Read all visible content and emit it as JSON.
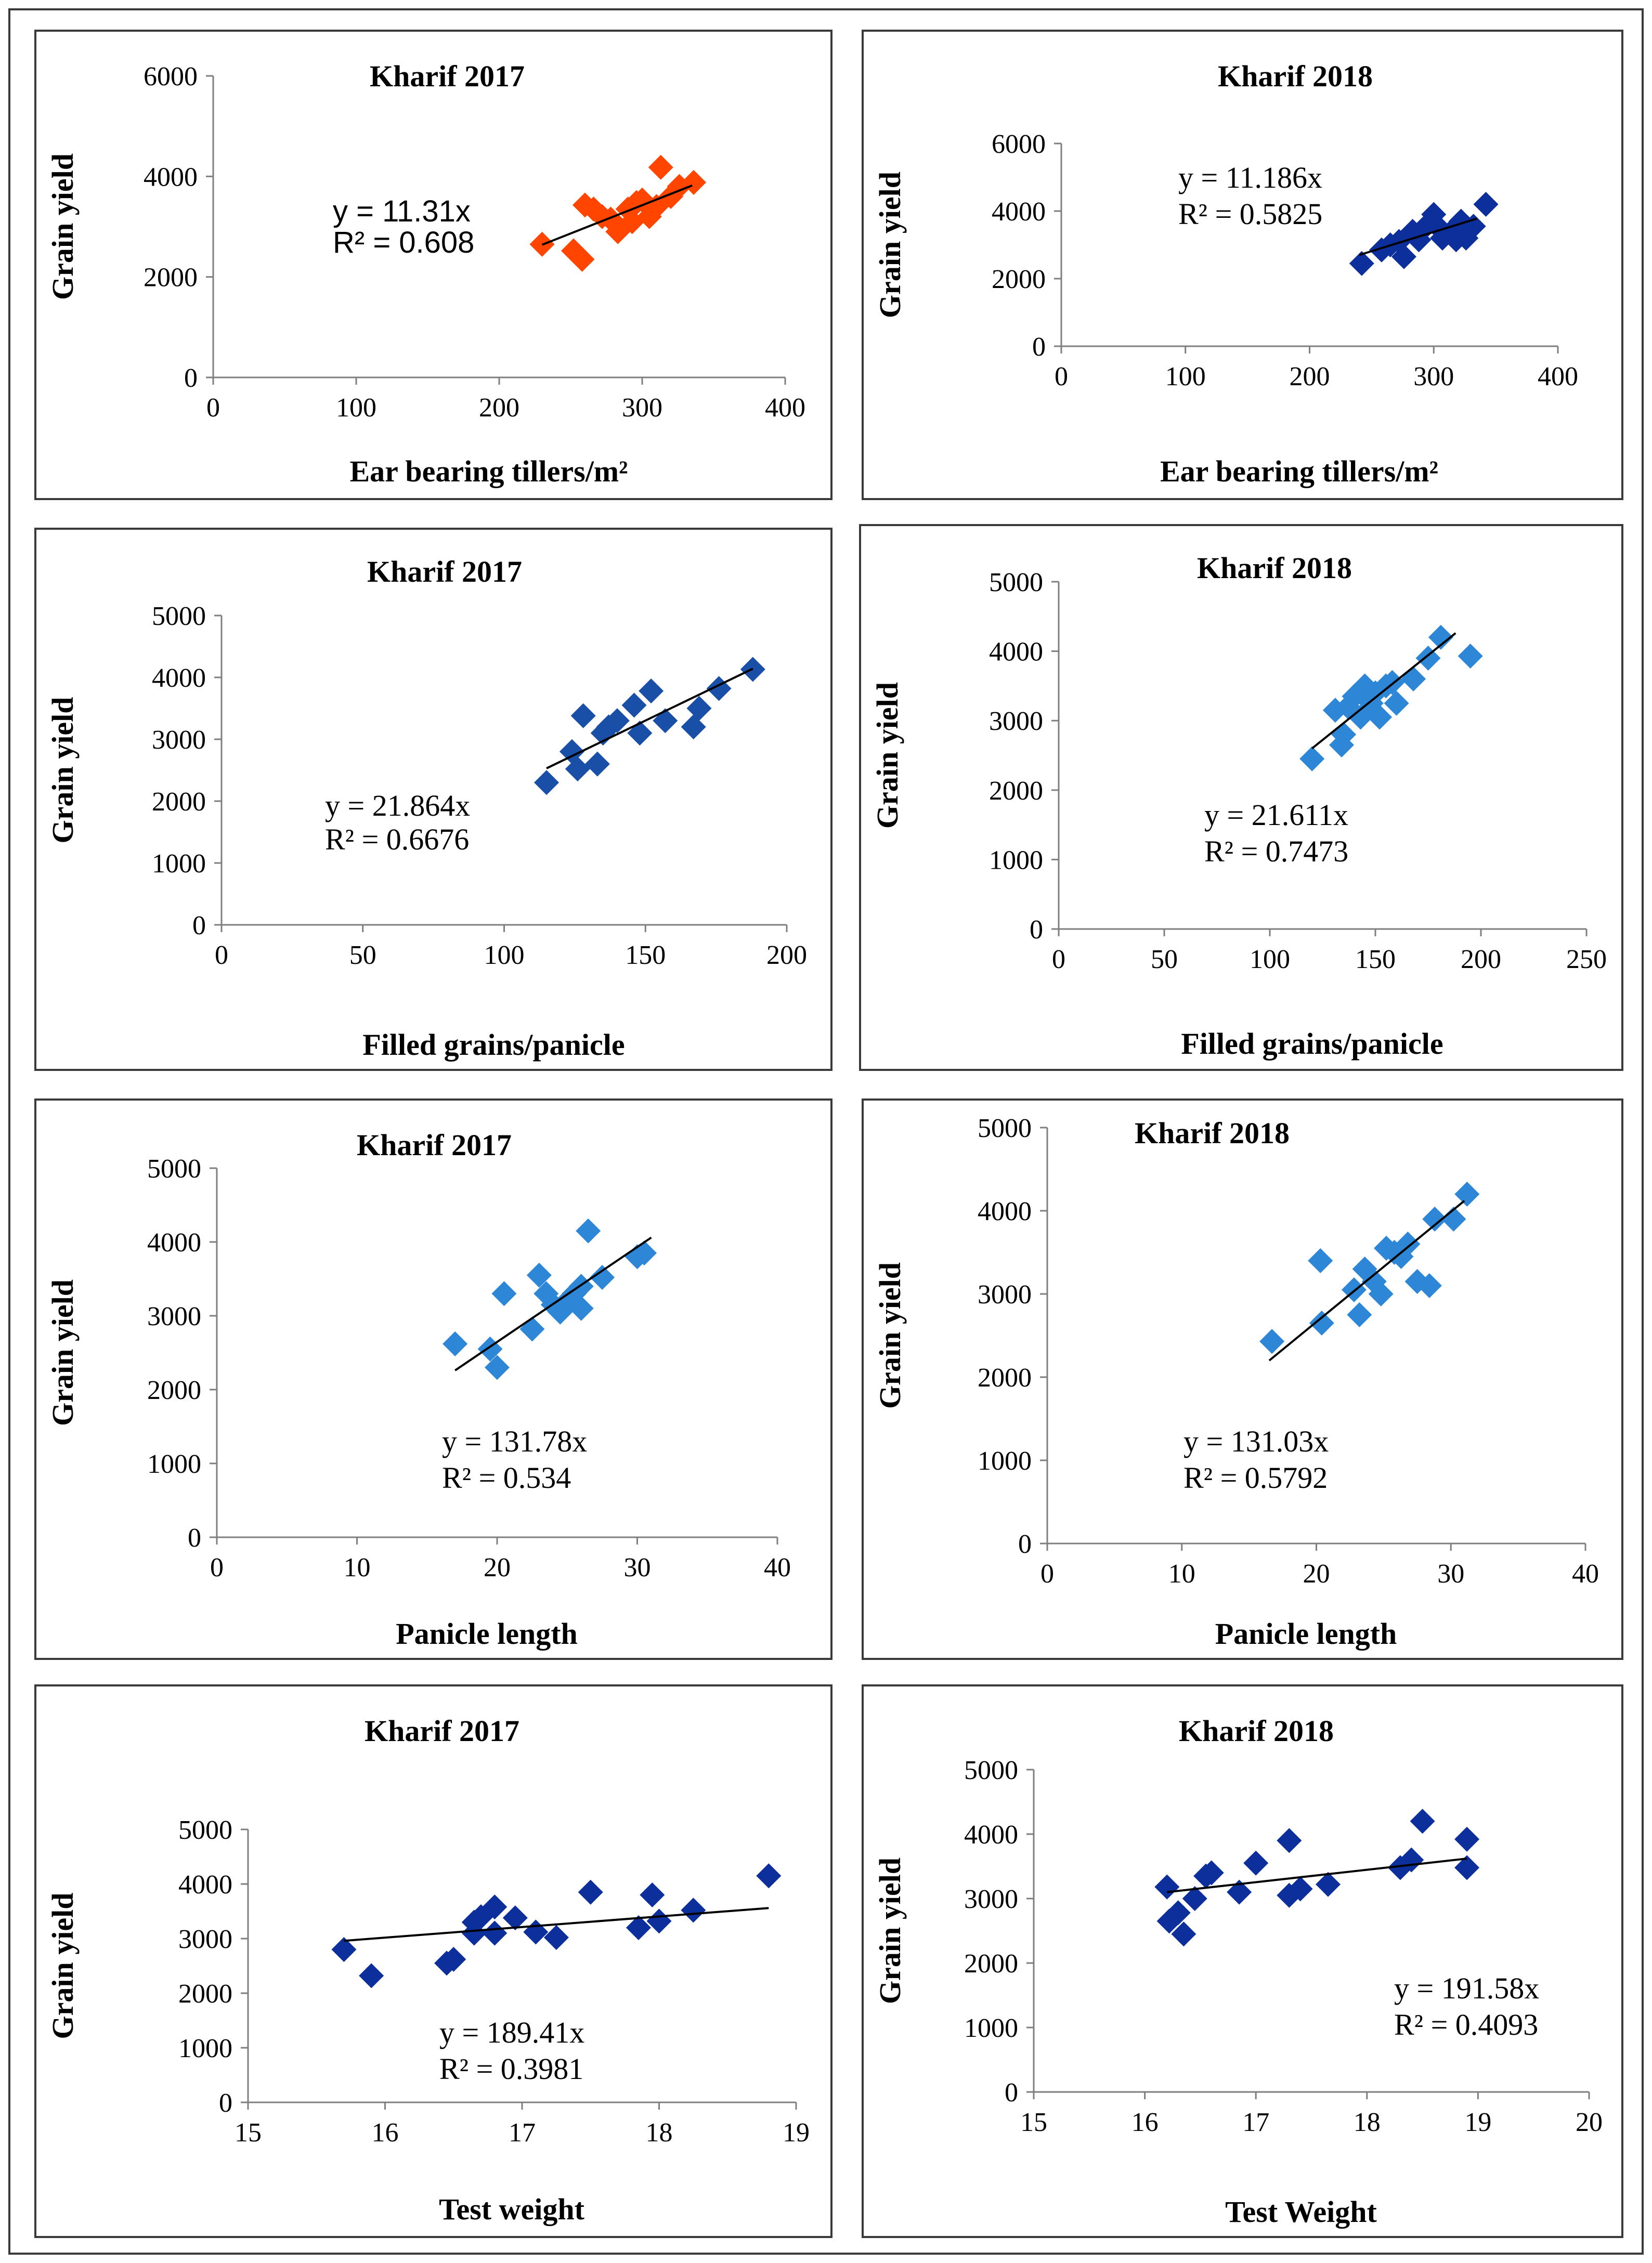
{
  "chart_data": [
    {
      "type": "scatter",
      "title": "Kharif 2017",
      "xlabel": "Ear bearing tillers/m²",
      "ylabel": "Grain yield",
      "xlim": [
        0,
        400
      ],
      "ylim": [
        0,
        6000
      ],
      "xticks": [
        0,
        100,
        200,
        300,
        400
      ],
      "yticks": [
        0,
        2000,
        4000,
        6000
      ],
      "color": "#ff4500",
      "equation": "y = 11.31x",
      "r2": "R² = 0.608",
      "eq_style": "sans",
      "trend": [
        [
          230,
          2640
        ],
        [
          335,
          3820
        ]
      ],
      "points": [
        [
          230,
          2650
        ],
        [
          252,
          2520
        ],
        [
          258,
          2350
        ],
        [
          260,
          3430
        ],
        [
          266,
          3350
        ],
        [
          272,
          3200
        ],
        [
          278,
          3150
        ],
        [
          283,
          2900
        ],
        [
          290,
          3350
        ],
        [
          293,
          3100
        ],
        [
          296,
          3480
        ],
        [
          300,
          3530
        ],
        [
          305,
          3200
        ],
        [
          310,
          3400
        ],
        [
          313,
          4180
        ],
        [
          320,
          3600
        ],
        [
          326,
          3800
        ],
        [
          336,
          3880
        ]
      ]
    },
    {
      "type": "scatter",
      "title": "Kharif 2018",
      "xlabel": "Ear bearing tillers/m²",
      "ylabel": "Grain yield",
      "xlim": [
        0,
        400
      ],
      "ylim": [
        0,
        6000
      ],
      "xticks": [
        0,
        100,
        200,
        300,
        400
      ],
      "yticks": [
        0,
        2000,
        4000,
        6000
      ],
      "color": "#0d2f9c",
      "equation": "y = 11.186x",
      "r2": "R² = 0.5825",
      "eq_style": "serif",
      "trend": [
        [
          240,
          2700
        ],
        [
          335,
          3780
        ]
      ],
      "points": [
        [
          242,
          2450
        ],
        [
          258,
          2850
        ],
        [
          265,
          3000
        ],
        [
          272,
          3100
        ],
        [
          276,
          2650
        ],
        [
          283,
          3400
        ],
        [
          288,
          3150
        ],
        [
          295,
          3600
        ],
        [
          300,
          3900
        ],
        [
          303,
          3550
        ],
        [
          307,
          3200
        ],
        [
          313,
          3350
        ],
        [
          318,
          3150
        ],
        [
          322,
          3700
        ],
        [
          326,
          3200
        ],
        [
          332,
          3550
        ],
        [
          342,
          4200
        ]
      ]
    },
    {
      "type": "scatter",
      "title": "Kharif 2017",
      "xlabel": "Filled grains/panicle",
      "ylabel": "Grain yield",
      "xlim": [
        0,
        200
      ],
      "ylim": [
        0,
        5000
      ],
      "xticks": [
        0,
        50,
        100,
        150,
        200
      ],
      "yticks": [
        0,
        1000,
        2000,
        3000,
        4000,
        5000
      ],
      "color": "#1a4fa8",
      "equation": "y = 21.864x",
      "r2": "R² = 0.6676",
      "eq_style": "serif",
      "trend": [
        [
          115,
          2530
        ],
        [
          188,
          4140
        ]
      ],
      "points": [
        [
          115,
          2300
        ],
        [
          124,
          2800
        ],
        [
          126,
          2520
        ],
        [
          128,
          3380
        ],
        [
          133,
          2600
        ],
        [
          135,
          3100
        ],
        [
          137,
          3200
        ],
        [
          140,
          3300
        ],
        [
          146,
          3550
        ],
        [
          148,
          3100
        ],
        [
          152,
          3780
        ],
        [
          157,
          3300
        ],
        [
          167,
          3200
        ],
        [
          169,
          3500
        ],
        [
          176,
          3820
        ],
        [
          188,
          4130
        ]
      ]
    },
    {
      "type": "scatter",
      "title": "Kharif 2018",
      "xlabel": "Filled grains/panicle",
      "ylabel": "Grain yield",
      "xlim": [
        0,
        250
      ],
      "ylim": [
        0,
        5000
      ],
      "xticks": [
        0,
        50,
        100,
        150,
        200,
        250
      ],
      "yticks": [
        0,
        1000,
        2000,
        3000,
        4000,
        5000
      ],
      "color": "#2e86d6",
      "equation": "y = 21.611x",
      "r2": "R² = 0.7473",
      "eq_style": "serif",
      "trend": [
        [
          120,
          2600
        ],
        [
          188,
          4260
        ]
      ],
      "points": [
        [
          120,
          2450
        ],
        [
          131,
          3150
        ],
        [
          134,
          2650
        ],
        [
          135,
          2800
        ],
        [
          137,
          3200
        ],
        [
          140,
          3350
        ],
        [
          143,
          3050
        ],
        [
          145,
          3500
        ],
        [
          148,
          3250
        ],
        [
          150,
          3400
        ],
        [
          152,
          3050
        ],
        [
          155,
          3500
        ],
        [
          158,
          3550
        ],
        [
          160,
          3250
        ],
        [
          168,
          3600
        ],
        [
          175,
          3900
        ],
        [
          181,
          4200
        ],
        [
          195,
          3930
        ]
      ]
    },
    {
      "type": "scatter",
      "title": "Kharif 2017",
      "xlabel": "Panicle length",
      "ylabel": "Grain yield",
      "xlim": [
        0,
        40
      ],
      "ylim": [
        0,
        5000
      ],
      "xticks": [
        0,
        10,
        20,
        30,
        40
      ],
      "yticks": [
        0,
        1000,
        2000,
        3000,
        4000,
        5000
      ],
      "color": "#2e86d6",
      "equation": "y = 131.78x",
      "r2": "R² = 0.534",
      "eq_style": "serif",
      "trend": [
        [
          17,
          2260
        ],
        [
          31,
          4060
        ]
      ],
      "points": [
        [
          17,
          2620
        ],
        [
          19.5,
          2550
        ],
        [
          20,
          2300
        ],
        [
          20.5,
          3300
        ],
        [
          22.5,
          2820
        ],
        [
          23,
          3550
        ],
        [
          23.5,
          3300
        ],
        [
          24,
          3150
        ],
        [
          24.5,
          3050
        ],
        [
          25,
          3200
        ],
        [
          25.5,
          3300
        ],
        [
          26,
          3100
        ],
        [
          26,
          3400
        ],
        [
          26.5,
          4150
        ],
        [
          27.5,
          3520
        ],
        [
          30,
          3800
        ],
        [
          30.5,
          3850
        ]
      ]
    },
    {
      "type": "scatter",
      "title": "Kharif 2018",
      "xlabel": "Panicle length",
      "ylabel": "Grain yield",
      "xlim": [
        0,
        40
      ],
      "ylim": [
        0,
        5000
      ],
      "xticks": [
        0,
        10,
        20,
        30,
        40
      ],
      "yticks": [
        0,
        1000,
        2000,
        3000,
        4000,
        5000
      ],
      "color": "#2e86d6",
      "equation": "y = 131.03x",
      "r2": "R² = 0.5792",
      "eq_style": "serif",
      "trend": [
        [
          16.5,
          2200
        ],
        [
          31,
          4120
        ]
      ],
      "points": [
        [
          16.7,
          2430
        ],
        [
          20.3,
          3400
        ],
        [
          20.4,
          2650
        ],
        [
          22.8,
          3050
        ],
        [
          23.2,
          2750
        ],
        [
          23.6,
          3300
        ],
        [
          24.3,
          3150
        ],
        [
          24.8,
          3000
        ],
        [
          25.2,
          3550
        ],
        [
          25.8,
          3500
        ],
        [
          26.3,
          3450
        ],
        [
          26.8,
          3600
        ],
        [
          27.5,
          3150
        ],
        [
          28.4,
          3100
        ],
        [
          28.8,
          3900
        ],
        [
          30.2,
          3900
        ],
        [
          31.2,
          4200
        ]
      ]
    },
    {
      "type": "scatter",
      "title": "Kharif 2017",
      "xlabel": "Test weight",
      "ylabel": "Grain yield",
      "xlim": [
        15,
        19
      ],
      "ylim": [
        0,
        5000
      ],
      "xticks": [
        15,
        16,
        17,
        18,
        19
      ],
      "yticks": [
        0,
        1000,
        2000,
        3000,
        4000,
        5000
      ],
      "color": "#0d2f9c",
      "equation": "y = 189.41x",
      "r2": "R² = 0.3981",
      "eq_style": "serif",
      "trend": [
        [
          15.7,
          2960
        ],
        [
          18.8,
          3560
        ]
      ],
      "points": [
        [
          15.7,
          2800
        ],
        [
          15.9,
          2320
        ],
        [
          16.45,
          2550
        ],
        [
          16.5,
          2620
        ],
        [
          16.65,
          3100
        ],
        [
          16.65,
          3300
        ],
        [
          16.7,
          3400
        ],
        [
          16.8,
          3580
        ],
        [
          16.8,
          3100
        ],
        [
          16.95,
          3380
        ],
        [
          17.1,
          3120
        ],
        [
          17.25,
          3020
        ],
        [
          17.5,
          3850
        ],
        [
          17.85,
          3200
        ],
        [
          17.95,
          3800
        ],
        [
          18,
          3320
        ],
        [
          18.25,
          3520
        ],
        [
          18.8,
          4150
        ]
      ]
    },
    {
      "type": "scatter",
      "title": "Kharif 2018",
      "xlabel": "Test Weight",
      "ylabel": "Grain yield",
      "xlim": [
        15,
        20
      ],
      "ylim": [
        0,
        5000
      ],
      "xticks": [
        15,
        16,
        17,
        18,
        19,
        20
      ],
      "yticks": [
        0,
        1000,
        2000,
        3000,
        4000,
        5000
      ],
      "color": "#0d2f9c",
      "equation": "y = 191.58x",
      "r2": "R² = 0.4093",
      "eq_style": "serif",
      "trend": [
        [
          16.2,
          3100
        ],
        [
          18.9,
          3620
        ]
      ],
      "points": [
        [
          16.2,
          3180
        ],
        [
          16.22,
          2650
        ],
        [
          16.3,
          2780
        ],
        [
          16.35,
          2450
        ],
        [
          16.45,
          3000
        ],
        [
          16.55,
          3350
        ],
        [
          16.6,
          3400
        ],
        [
          16.85,
          3100
        ],
        [
          17,
          3550
        ],
        [
          17.3,
          3900
        ],
        [
          17.3,
          3050
        ],
        [
          17.4,
          3150
        ],
        [
          17.65,
          3220
        ],
        [
          18.3,
          3480
        ],
        [
          18.4,
          3600
        ],
        [
          18.5,
          4200
        ],
        [
          18.9,
          3480
        ],
        [
          18.9,
          3920
        ]
      ]
    }
  ]
}
